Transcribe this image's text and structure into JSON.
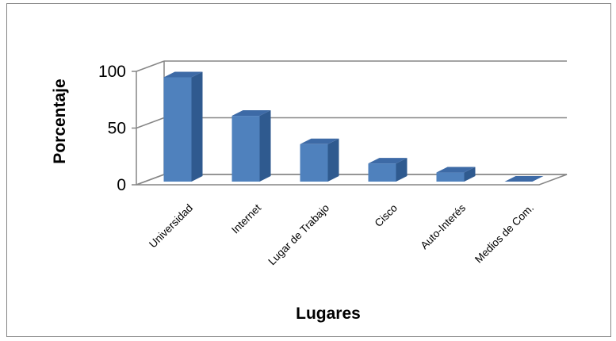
{
  "chart_data": {
    "type": "bar",
    "style": "3d-column",
    "title": "",
    "xlabel": "Lugares",
    "ylabel": "Porcentaje",
    "categories": [
      "Universidad",
      "Internet",
      "Lugar de Trabajo",
      "Cisco",
      "Auto-Interés",
      "Medios de Com."
    ],
    "values": [
      92,
      58,
      33,
      16,
      8,
      0
    ],
    "ylim": [
      0,
      100
    ],
    "yticks": [
      "0",
      "50",
      "100"
    ],
    "grid": true,
    "legend": "none",
    "colors": {
      "bar_front": "#4f81bd",
      "bar_side": "#2f5a8f",
      "bar_top": "#3d6aa6",
      "gridline": "#868686"
    }
  }
}
